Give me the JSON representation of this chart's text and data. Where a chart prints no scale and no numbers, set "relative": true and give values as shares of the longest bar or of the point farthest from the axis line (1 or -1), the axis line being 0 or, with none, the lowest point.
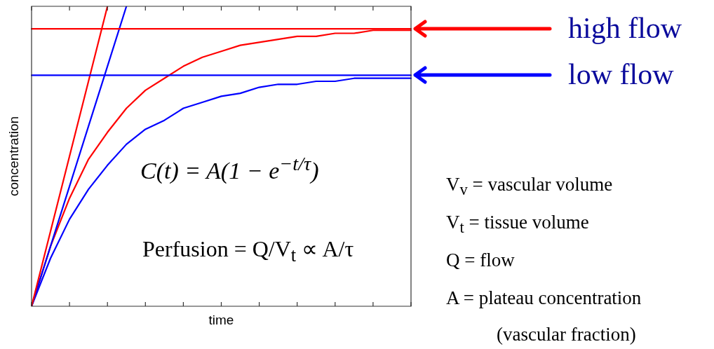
{
  "chart_data": {
    "type": "line",
    "relative": true,
    "xlabel": "time",
    "ylabel": "concentration",
    "categories": [
      null,
      null,
      null,
      null,
      null,
      null,
      null,
      null,
      null,
      null,
      null,
      null,
      null,
      null,
      null,
      null,
      null,
      null,
      null,
      null,
      null
    ],
    "grid": false,
    "legend": "top right",
    "marker": "none",
    "line_style": "solid",
    "series": [
      {
        "name": "high flow",
        "color": "#ff0000",
        "values": [
          0.925,
          0.925,
          0.925,
          0.925,
          0.925,
          0.925,
          0.925,
          0.925,
          0.925,
          0.925,
          0.925,
          0.925,
          0.925,
          0.925,
          0.925,
          0.925,
          0.925,
          0.925,
          0.925,
          0.925,
          0.925
        ]
      },
      {
        "name": "low flow",
        "color": "#0000ff",
        "values": [
          0.77,
          0.77,
          0.77,
          0.77,
          0.77,
          0.77,
          0.77,
          0.77,
          0.77,
          0.77,
          0.77,
          0.77,
          0.77,
          0.77,
          0.77,
          0.77,
          0.77,
          0.77,
          0.77,
          0.77,
          0.77
        ]
      },
      {
        "color": "#ff0000",
        "values": [
          0,
          0.25,
          0.5,
          0.75,
          1,
          null,
          null,
          null,
          null,
          null,
          null,
          null,
          null,
          null,
          null,
          null,
          null,
          null,
          null,
          null,
          null
        ]
      },
      {
        "color": "#0000ff",
        "values": [
          0,
          0.2,
          0.4,
          0.6,
          0.8,
          1,
          null,
          null,
          null,
          null,
          null,
          null,
          null,
          null,
          null,
          null,
          null,
          null,
          null,
          null,
          null
        ]
      },
      {
        "color": "#ff0000",
        "values": [
          0,
          0.2,
          0.36,
          0.49,
          0.58,
          0.66,
          0.72,
          0.76,
          0.8,
          0.83,
          0.85,
          0.87,
          0.88,
          0.89,
          0.9,
          0.9,
          0.91,
          0.91,
          0.92,
          0.92,
          0.92
        ]
      },
      {
        "color": "#0000ff",
        "values": [
          0,
          0.16,
          0.29,
          0.39,
          0.47,
          0.54,
          0.59,
          0.62,
          0.66,
          0.68,
          0.7,
          0.71,
          0.73,
          0.74,
          0.74,
          0.75,
          0.75,
          0.76,
          0.76,
          0.76,
          0.76
        ]
      }
    ],
    "annotations": [
      "C(t) = A(1 − e$^{−t/τ}$)",
      "Perfusion = Q/V$_{t}$ ∝ A/τ",
      "V$_{v}$ = vascular volume",
      "V$_{t}$ = tissue volume",
      "Q = flow",
      "A = plateau concentration",
      "(vascular fraction)"
    ]
  }
}
